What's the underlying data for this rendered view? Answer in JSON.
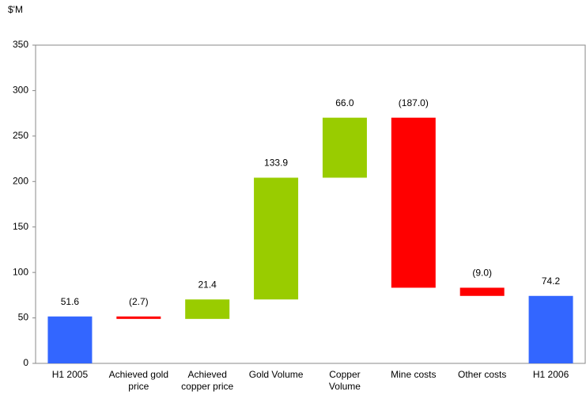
{
  "chart_data": {
    "type": "waterfall",
    "y_axis_label": "$'M",
    "categories": [
      "H1 2005",
      "Achieved gold\nprice",
      "Achieved\ncopper price",
      "Gold Volume",
      "Copper\nVolume",
      "Mine costs",
      "Other costs",
      "H1 2006"
    ],
    "values": [
      51.6,
      -2.7,
      21.4,
      133.9,
      66.0,
      -187.0,
      -9.0,
      74.2
    ],
    "value_labels": [
      "51.6",
      "(2.7)",
      "21.4",
      "133.9",
      "66.0",
      "(187.0)",
      "(9.0)",
      "74.2"
    ],
    "is_total": [
      true,
      false,
      false,
      false,
      false,
      false,
      false,
      true
    ],
    "colors": [
      "#3366ff",
      "#ff0000",
      "#99cc00",
      "#99cc00",
      "#99cc00",
      "#ff0000",
      "#ff0000",
      "#3366ff"
    ],
    "ylim": [
      0,
      350
    ],
    "yticks": [
      0,
      50,
      100,
      150,
      200,
      250,
      300,
      350
    ],
    "grid": false
  }
}
